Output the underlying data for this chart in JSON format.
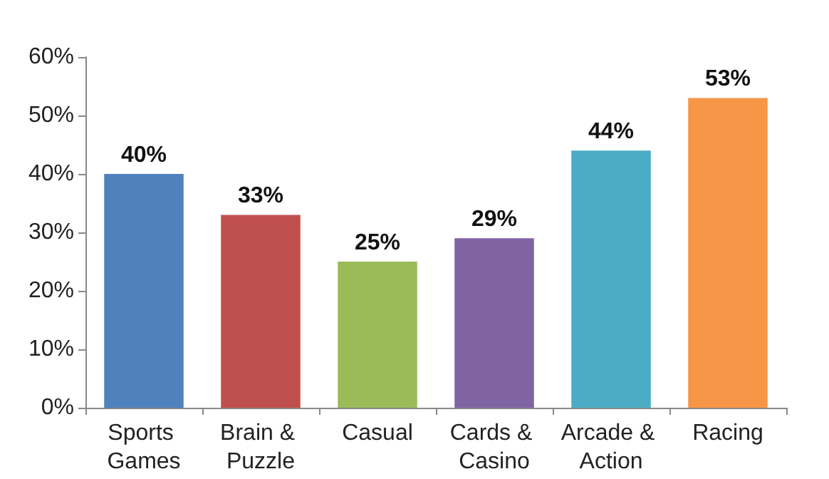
{
  "chart_data": {
    "type": "bar",
    "categories": [
      "Sports Games",
      "Brain & Puzzle",
      "Casual",
      "Cards & Casino",
      "Arcade & Action",
      "Racing"
    ],
    "values": [
      40,
      33,
      25,
      29,
      44,
      53
    ],
    "colors": [
      "#4f81bd",
      "#c0504d",
      "#9bbb59",
      "#8064a2",
      "#4bacc6",
      "#f79646"
    ],
    "value_labels": [
      "40%",
      "33%",
      "25%",
      "29%",
      "44%",
      "53%"
    ],
    "ylim": [
      0,
      60
    ],
    "yticks": [
      {
        "value": 0,
        "label": "0%"
      },
      {
        "value": 10,
        "label": "10%"
      },
      {
        "value": 20,
        "label": "20%"
      },
      {
        "value": 30,
        "label": "30%"
      },
      {
        "value": 40,
        "label": "40%"
      },
      {
        "value": 50,
        "label": "50%"
      },
      {
        "value": 60,
        "label": "60%"
      }
    ],
    "grid": false
  }
}
